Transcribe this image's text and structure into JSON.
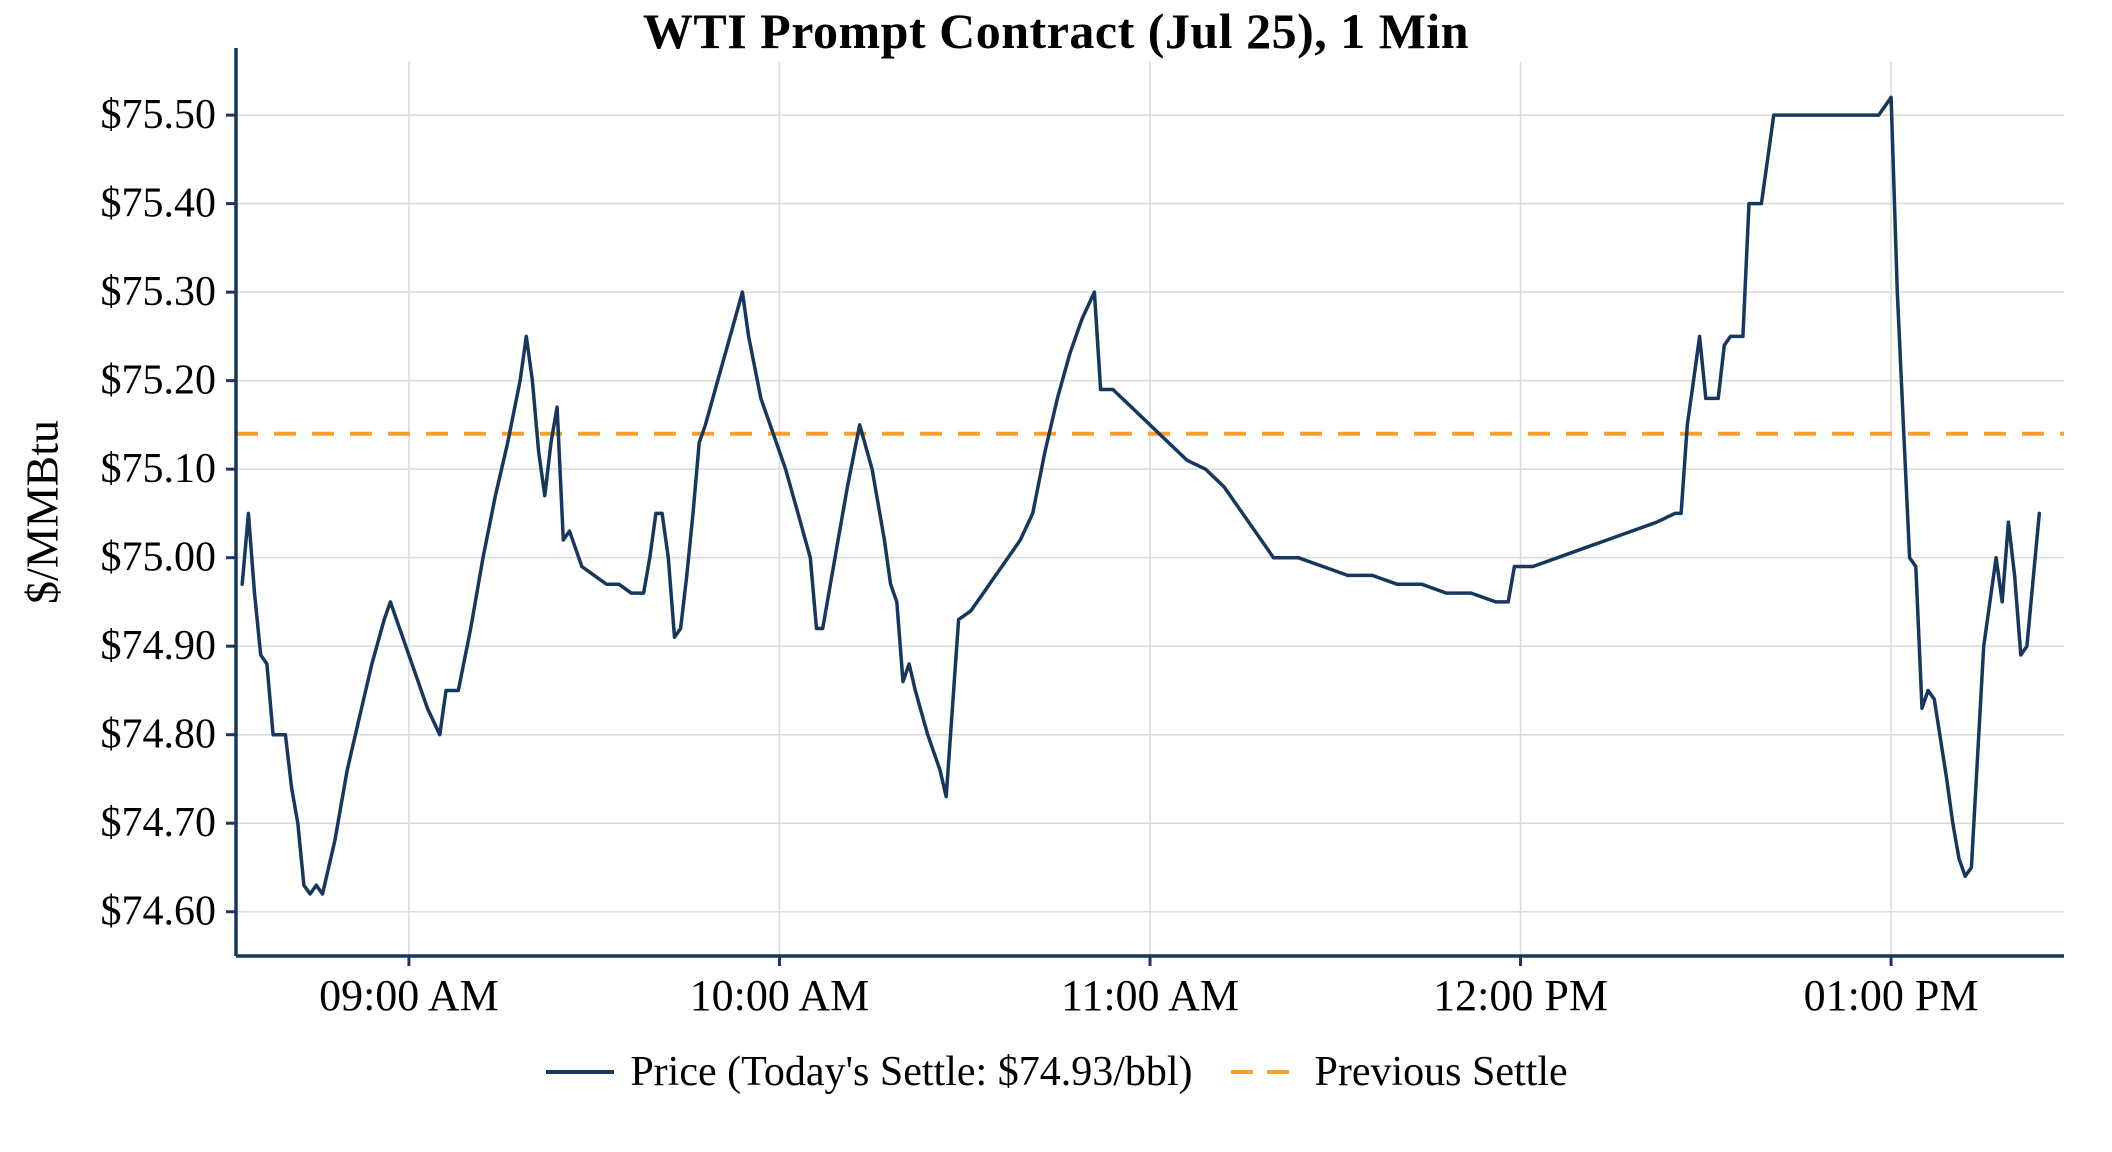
{
  "title": "WTI Prompt Contract (Jul 25), 1 Min",
  "ylabel": "$/MMBtu",
  "legend": {
    "price_label": "Price (Today's Settle: $74.93/bbl)",
    "prev_settle_label": "Previous Settle"
  },
  "colors": {
    "price": "#17375e",
    "prev_settle": "#f5a02d",
    "grid": "#dadada",
    "axis": "#17375e",
    "text": "#000000",
    "background": "#ffffff"
  },
  "chart_data": {
    "type": "line",
    "title": "WTI Prompt Contract (Jul 25), 1 Min",
    "xlabel": "",
    "ylabel": "$/MMBtu",
    "legend_position": "bottom",
    "grid": true,
    "x_unit": "minutes since 08:00 AM",
    "x_range": [
      32,
      328
    ],
    "y_range": [
      74.55,
      75.56
    ],
    "previous_settle": 75.14,
    "todays_settle": 74.93,
    "y_ticks": [
      {
        "v": 74.6,
        "label": "$74.60"
      },
      {
        "v": 74.7,
        "label": "$74.70"
      },
      {
        "v": 74.8,
        "label": "$74.80"
      },
      {
        "v": 74.9,
        "label": "$74.90"
      },
      {
        "v": 75.0,
        "label": "$75.00"
      },
      {
        "v": 75.1,
        "label": "$75.10"
      },
      {
        "v": 75.2,
        "label": "$75.20"
      },
      {
        "v": 75.3,
        "label": "$75.30"
      },
      {
        "v": 75.4,
        "label": "$75.40"
      },
      {
        "v": 75.5,
        "label": "$75.50"
      }
    ],
    "x_ticks": [
      {
        "v": 60,
        "label": "09:00 AM"
      },
      {
        "v": 120,
        "label": "10:00 AM"
      },
      {
        "v": 180,
        "label": "11:00 AM"
      },
      {
        "v": 240,
        "label": "12:00 PM"
      },
      {
        "v": 300,
        "label": "01:00 PM"
      }
    ],
    "series": [
      {
        "name": "Price (Today's Settle: $74.93/bbl)",
        "points": [
          [
            33,
            74.97
          ],
          [
            34,
            75.05
          ],
          [
            35,
            74.96
          ],
          [
            36,
            74.89
          ],
          [
            37,
            74.88
          ],
          [
            38,
            74.8
          ],
          [
            40,
            74.8
          ],
          [
            41,
            74.74
          ],
          [
            42,
            74.7
          ],
          [
            43,
            74.63
          ],
          [
            44,
            74.62
          ],
          [
            45,
            74.63
          ],
          [
            46,
            74.62
          ],
          [
            48,
            74.68
          ],
          [
            50,
            74.76
          ],
          [
            52,
            74.82
          ],
          [
            54,
            74.88
          ],
          [
            56,
            74.93
          ],
          [
            57,
            74.95
          ],
          [
            59,
            74.91
          ],
          [
            61,
            74.87
          ],
          [
            63,
            74.83
          ],
          [
            65,
            74.8
          ],
          [
            66,
            74.85
          ],
          [
            68,
            74.85
          ],
          [
            70,
            74.92
          ],
          [
            72,
            75.0
          ],
          [
            74,
            75.07
          ],
          [
            76,
            75.13
          ],
          [
            78,
            75.2
          ],
          [
            79,
            75.25
          ],
          [
            80,
            75.2
          ],
          [
            81,
            75.12
          ],
          [
            82,
            75.07
          ],
          [
            83,
            75.13
          ],
          [
            84,
            75.17
          ],
          [
            85,
            75.02
          ],
          [
            86,
            75.03
          ],
          [
            87,
            75.01
          ],
          [
            88,
            74.99
          ],
          [
            90,
            74.98
          ],
          [
            92,
            74.97
          ],
          [
            94,
            74.97
          ],
          [
            96,
            74.96
          ],
          [
            98,
            74.96
          ],
          [
            99,
            75.0
          ],
          [
            100,
            75.05
          ],
          [
            101,
            75.05
          ],
          [
            102,
            75.0
          ],
          [
            103,
            74.91
          ],
          [
            104,
            74.92
          ],
          [
            105,
            74.98
          ],
          [
            106,
            75.05
          ],
          [
            107,
            75.13
          ],
          [
            108,
            75.15
          ],
          [
            110,
            75.2
          ],
          [
            112,
            75.25
          ],
          [
            114,
            75.3
          ],
          [
            115,
            75.25
          ],
          [
            117,
            75.18
          ],
          [
            119,
            75.14
          ],
          [
            121,
            75.1
          ],
          [
            123,
            75.05
          ],
          [
            125,
            75.0
          ],
          [
            126,
            74.92
          ],
          [
            127,
            74.92
          ],
          [
            129,
            75.0
          ],
          [
            131,
            75.08
          ],
          [
            133,
            75.15
          ],
          [
            135,
            75.1
          ],
          [
            137,
            75.02
          ],
          [
            138,
            74.97
          ],
          [
            139,
            74.95
          ],
          [
            140,
            74.86
          ],
          [
            141,
            74.88
          ],
          [
            142,
            74.85
          ],
          [
            144,
            74.8
          ],
          [
            146,
            74.76
          ],
          [
            147,
            74.73
          ],
          [
            149,
            74.93
          ],
          [
            151,
            74.94
          ],
          [
            153,
            74.96
          ],
          [
            155,
            74.98
          ],
          [
            157,
            75.0
          ],
          [
            159,
            75.02
          ],
          [
            161,
            75.05
          ],
          [
            163,
            75.12
          ],
          [
            165,
            75.18
          ],
          [
            167,
            75.23
          ],
          [
            169,
            75.27
          ],
          [
            171,
            75.3
          ],
          [
            172,
            75.19
          ],
          [
            174,
            75.19
          ],
          [
            177,
            75.17
          ],
          [
            180,
            75.15
          ],
          [
            183,
            75.13
          ],
          [
            186,
            75.11
          ],
          [
            189,
            75.1
          ],
          [
            192,
            75.08
          ],
          [
            195,
            75.05
          ],
          [
            198,
            75.02
          ],
          [
            200,
            75.0
          ],
          [
            204,
            75.0
          ],
          [
            208,
            74.99
          ],
          [
            212,
            74.98
          ],
          [
            216,
            74.98
          ],
          [
            220,
            74.97
          ],
          [
            224,
            74.97
          ],
          [
            228,
            74.96
          ],
          [
            232,
            74.96
          ],
          [
            236,
            74.95
          ],
          [
            238,
            74.95
          ],
          [
            239,
            74.99
          ],
          [
            242,
            74.99
          ],
          [
            246,
            75.0
          ],
          [
            250,
            75.01
          ],
          [
            254,
            75.02
          ],
          [
            258,
            75.03
          ],
          [
            262,
            75.04
          ],
          [
            265,
            75.05
          ],
          [
            266,
            75.05
          ],
          [
            267,
            75.15
          ],
          [
            268,
            75.2
          ],
          [
            269,
            75.25
          ],
          [
            270,
            75.18
          ],
          [
            272,
            75.18
          ],
          [
            273,
            75.24
          ],
          [
            274,
            75.25
          ],
          [
            276,
            75.25
          ],
          [
            277,
            75.4
          ],
          [
            279,
            75.4
          ],
          [
            280,
            75.45
          ],
          [
            281,
            75.5
          ],
          [
            285,
            75.5
          ],
          [
            290,
            75.5
          ],
          [
            295,
            75.5
          ],
          [
            298,
            75.5
          ],
          [
            300,
            75.52
          ],
          [
            301,
            75.3
          ],
          [
            302,
            75.15
          ],
          [
            303,
            75.0
          ],
          [
            304,
            74.99
          ],
          [
            305,
            74.83
          ],
          [
            306,
            74.85
          ],
          [
            307,
            74.84
          ],
          [
            309,
            74.75
          ],
          [
            310,
            74.7
          ],
          [
            311,
            74.66
          ],
          [
            312,
            74.64
          ],
          [
            313,
            74.65
          ],
          [
            315,
            74.9
          ],
          [
            317,
            75.0
          ],
          [
            318,
            74.95
          ],
          [
            319,
            75.04
          ],
          [
            320,
            74.98
          ],
          [
            321,
            74.89
          ],
          [
            322,
            74.9
          ],
          [
            324,
            75.05
          ]
        ]
      }
    ]
  }
}
